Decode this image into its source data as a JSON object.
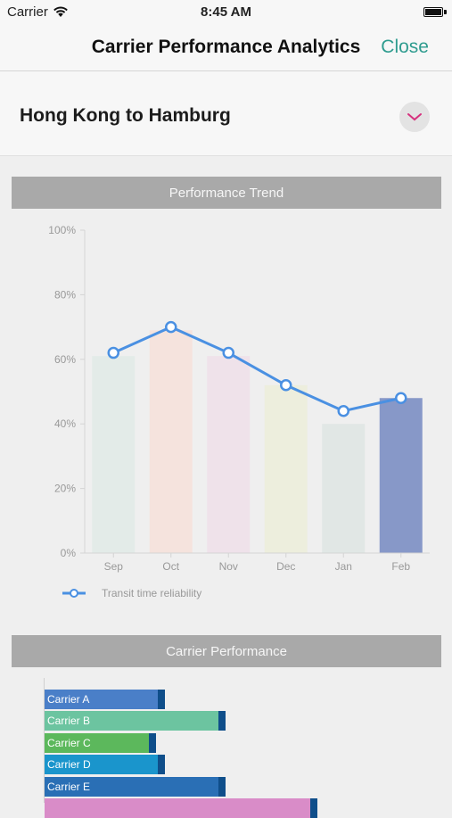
{
  "status": {
    "carrier": "Carrier",
    "time": "8:45 AM"
  },
  "nav": {
    "title": "Carrier Performance Analytics",
    "close_label": "Close"
  },
  "route": {
    "label": "Hong Kong to Hamburg",
    "toggle_icon": "chevron-down-icon",
    "accent": "#d6317e"
  },
  "sections": {
    "trend_title": "Performance Trend",
    "carrier_title": "Carrier Performance"
  },
  "chart_data": [
    {
      "type": "bar",
      "categories": [
        "Sep",
        "Oct",
        "Nov",
        "Dec",
        "Jan",
        "Feb"
      ],
      "series": [
        {
          "name": "",
          "type": "bar",
          "values": [
            61,
            69,
            61,
            52,
            40,
            48
          ],
          "colors": [
            "#e3ebe8",
            "#f5e3dd",
            "#efe2ea",
            "#edeedd",
            "#e1e7e5",
            "#8798c8"
          ]
        },
        {
          "name": "Transit time reliability",
          "type": "line",
          "values": [
            62,
            70,
            62,
            52,
            44,
            48
          ],
          "color": "#4a90e2"
        }
      ],
      "ylim": [
        0,
        100
      ],
      "yticks": [
        "0%",
        "20%",
        "40%",
        "60%",
        "80%",
        "100%"
      ],
      "legend": "bottom-left"
    },
    {
      "type": "bar",
      "orientation": "horizontal",
      "categories": [
        "Carrier A",
        "Carrier B",
        "Carrier C",
        "Carrier D",
        "Carrier E",
        ""
      ],
      "values": [
        135,
        203,
        125,
        135,
        203,
        306
      ],
      "colors": [
        "#4a7fc8",
        "#6cc4a0",
        "#5cb85c",
        "#1a95cc",
        "#2a6fb5",
        "#d98cc8"
      ]
    }
  ]
}
